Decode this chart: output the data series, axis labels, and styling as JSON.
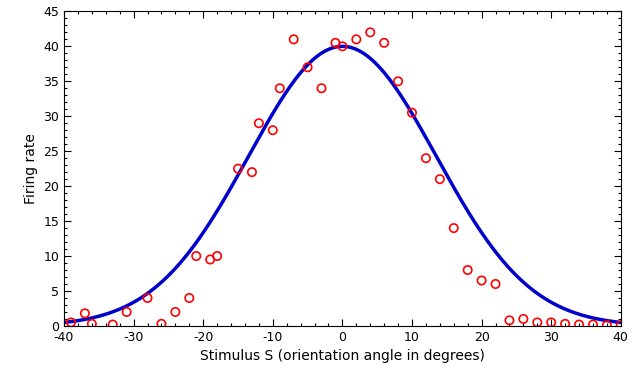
{
  "scatter_x": [
    -39,
    -37,
    -36,
    -33,
    -31,
    -28,
    -26,
    -24,
    -22,
    -21,
    -19,
    -18,
    -15,
    -13,
    -12,
    -10,
    -9,
    -7,
    -5,
    -3,
    -1,
    0,
    2,
    4,
    6,
    8,
    10,
    12,
    14,
    16,
    18,
    20,
    22,
    24,
    26,
    28,
    30,
    32,
    34,
    36,
    38,
    40
  ],
  "scatter_y": [
    0.5,
    1.8,
    0.3,
    0.2,
    2.0,
    4.0,
    0.3,
    2.0,
    4.0,
    10.0,
    9.5,
    10.0,
    22.5,
    22.0,
    29.0,
    28.0,
    34.0,
    41.0,
    37.0,
    34.0,
    40.5,
    40.0,
    41.0,
    42.0,
    40.5,
    35.0,
    30.5,
    24.0,
    21.0,
    14.0,
    8.0,
    6.5,
    6.0,
    0.8,
    1.0,
    0.5,
    0.5,
    0.3,
    0.2,
    0.2,
    0.1,
    0.1
  ],
  "curve_amplitude": 40,
  "curve_sigma": 13.5,
  "curve_color": "#0000cc",
  "scatter_facecolor": "none",
  "scatter_edgecolor": "#ff0000",
  "xlabel": "Stimulus S (orientation angle in degrees)",
  "ylabel": "Firing rate",
  "xlim": [
    -40,
    40
  ],
  "ylim": [
    0,
    45
  ],
  "xticks": [
    -40,
    -30,
    -20,
    -10,
    0,
    10,
    20,
    30,
    40
  ],
  "yticks": [
    0,
    5,
    10,
    15,
    20,
    25,
    30,
    35,
    40,
    45
  ],
  "background_color": "#ffffff",
  "curve_linewidth": 2.5,
  "scatter_markersize": 6,
  "scatter_linewidth": 1.2,
  "figsize": [
    6.4,
    3.79
  ],
  "dpi": 100
}
